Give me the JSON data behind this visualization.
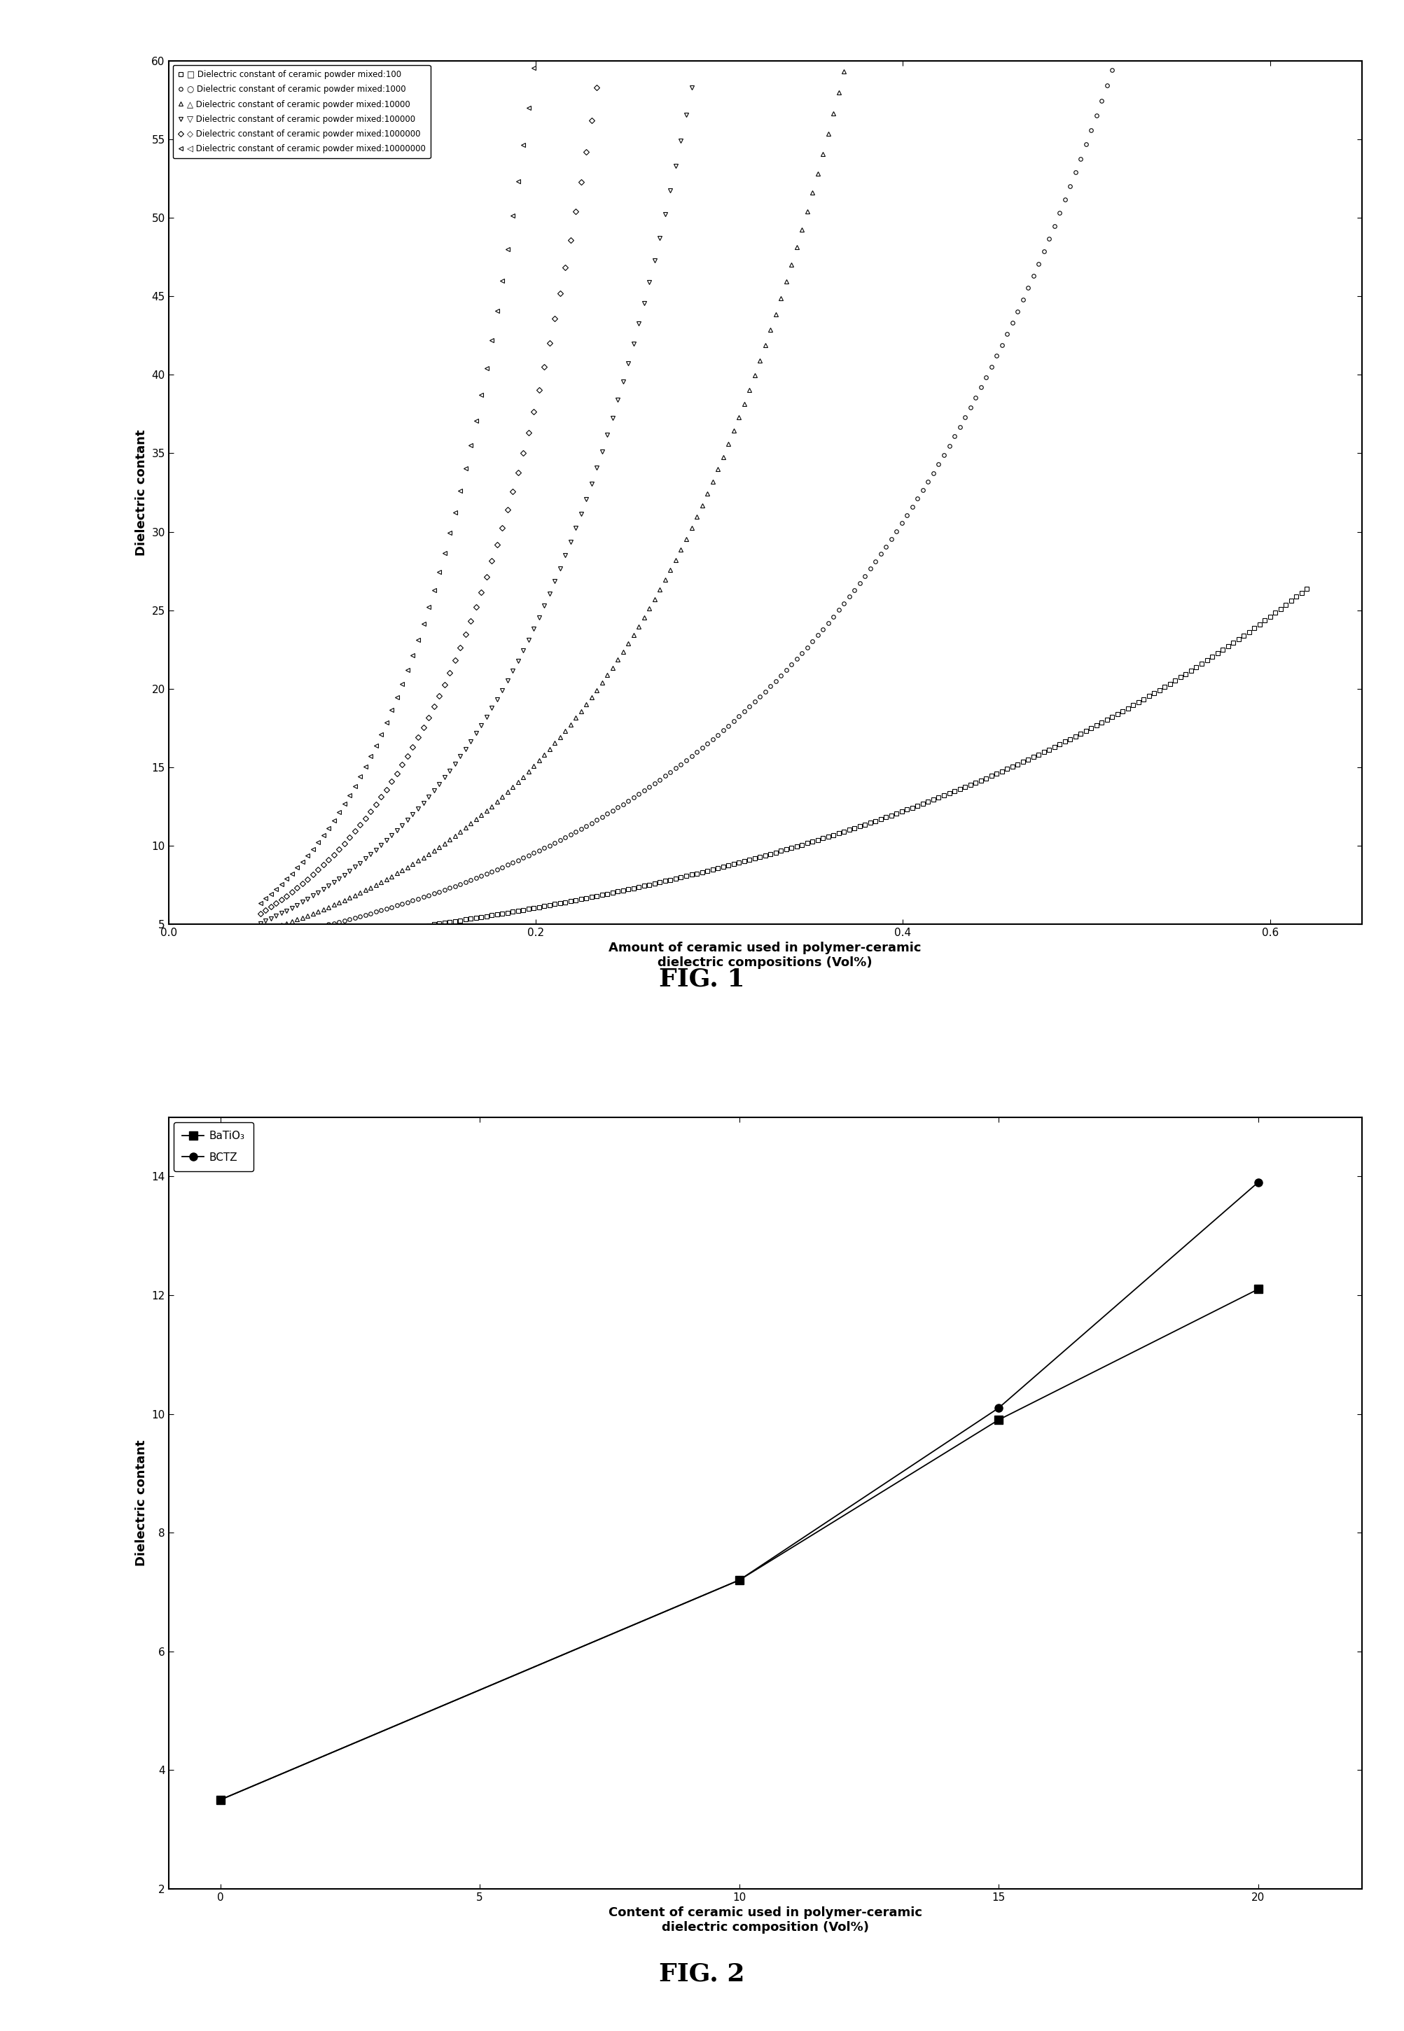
{
  "fig1": {
    "xlabel": "Amount of ceramic used in polymer-ceramic\ndielectric compositions (Vol%)",
    "ylabel": "Dielectric contant",
    "xlim": [
      0.0,
      0.65
    ],
    "ylim": [
      5,
      60
    ],
    "yticks": [
      5,
      10,
      15,
      20,
      25,
      30,
      35,
      40,
      45,
      50,
      55,
      60
    ],
    "xticks": [
      0.0,
      0.2,
      0.4,
      0.6
    ],
    "ep_matrix": 3.0,
    "series": [
      {
        "label": "□ Dielectric constant of ceramic powder mixed:100",
        "marker": "s",
        "ep_r": 100,
        "fillstyle": "none"
      },
      {
        "label": "○ Dielectric constant of ceramic powder mixed:1000",
        "marker": "o",
        "ep_r": 1000,
        "fillstyle": "none"
      },
      {
        "label": "△ Dielectric constant of ceramic powder mixed:10000",
        "marker": "^",
        "ep_r": 10000,
        "fillstyle": "none"
      },
      {
        "label": "▽ Dielectric constant of ceramic powder mixed:100000",
        "marker": "v",
        "ep_r": 100000,
        "fillstyle": "none"
      },
      {
        "label": "◇ Dielectric constant of ceramic powder mixed:1000000",
        "marker": "D",
        "ep_r": 1000000,
        "fillstyle": "none"
      },
      {
        "label": "◁ Dielectric constant of ceramic powder mixed:10000000",
        "marker": "<",
        "ep_r": 10000000,
        "fillstyle": "none"
      }
    ],
    "fig_label": "FIG. 1"
  },
  "fig2": {
    "xlabel": "Content of ceramic used in polymer-ceramic\ndielectric composition (Vol%)",
    "ylabel": "Dielectric contant",
    "xlim": [
      -1,
      22
    ],
    "ylim": [
      2,
      15
    ],
    "yticks": [
      2,
      4,
      6,
      8,
      10,
      12,
      14
    ],
    "xticks": [
      0,
      5,
      10,
      15,
      20
    ],
    "series": [
      {
        "label": "BaTiO₃",
        "marker": "s",
        "x": [
          0,
          10,
          15,
          20
        ],
        "y": [
          3.5,
          7.2,
          9.9,
          12.1
        ]
      },
      {
        "label": "BCTZ",
        "marker": "o",
        "x": [
          0,
          10,
          15,
          20
        ],
        "y": [
          3.5,
          7.2,
          10.1,
          13.9
        ]
      }
    ],
    "fig_label": "FIG. 2"
  },
  "bg_color": "#ffffff",
  "line_color": "#000000"
}
